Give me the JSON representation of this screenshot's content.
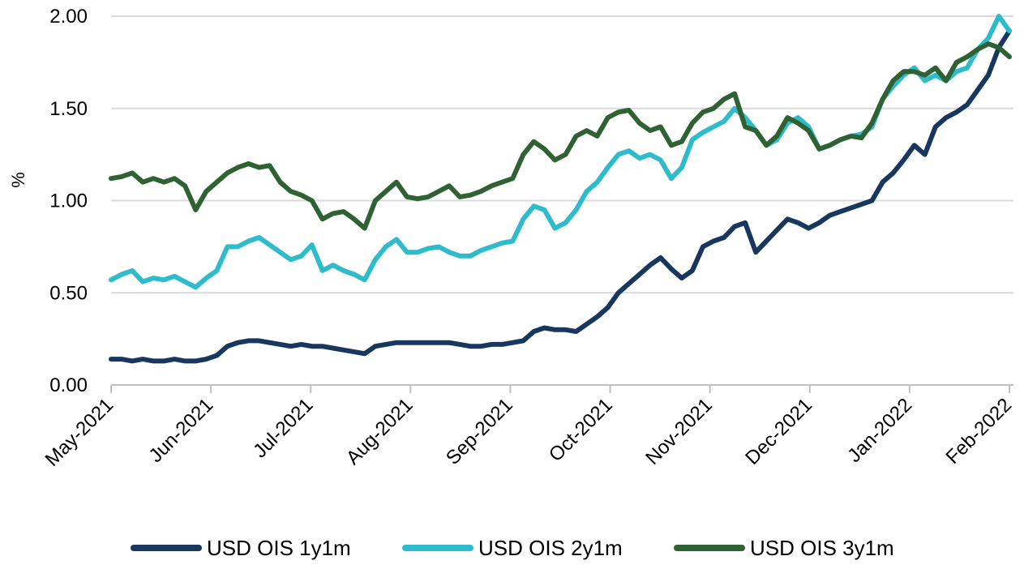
{
  "chart_data": {
    "type": "line",
    "title": "",
    "xlabel": "",
    "ylabel": "%",
    "ylim": [
      0,
      2
    ],
    "yticks": [
      "0.00",
      "0.50",
      "1.00",
      "1.50",
      "2.00"
    ],
    "ytick_values": [
      0,
      0.5,
      1,
      1.5,
      2
    ],
    "xticks": [
      "May-2021",
      "Jun-2021",
      "Jul-2021",
      "Aug-2021",
      "Sep-2021",
      "Oct-2021",
      "Nov-2021",
      "Dec-2021",
      "Jan-2022",
      "Feb-2022"
    ],
    "grid": true,
    "legend_position": "bottom",
    "series": [
      {
        "name": "USD OIS 1y1m",
        "color": "#17375e",
        "values": [
          0.14,
          0.14,
          0.13,
          0.14,
          0.13,
          0.13,
          0.14,
          0.13,
          0.13,
          0.14,
          0.16,
          0.21,
          0.23,
          0.24,
          0.24,
          0.23,
          0.22,
          0.21,
          0.22,
          0.21,
          0.21,
          0.2,
          0.19,
          0.18,
          0.17,
          0.21,
          0.22,
          0.23,
          0.23,
          0.23,
          0.23,
          0.23,
          0.23,
          0.22,
          0.21,
          0.21,
          0.22,
          0.22,
          0.23,
          0.24,
          0.29,
          0.31,
          0.3,
          0.3,
          0.29,
          0.33,
          0.37,
          0.42,
          0.5,
          0.55,
          0.6,
          0.65,
          0.69,
          0.63,
          0.58,
          0.62,
          0.75,
          0.78,
          0.8,
          0.86,
          0.88,
          0.72,
          0.78,
          0.84,
          0.9,
          0.88,
          0.85,
          0.88,
          0.92,
          0.94,
          0.96,
          0.98,
          1.0,
          1.1,
          1.15,
          1.22,
          1.3,
          1.25,
          1.4,
          1.45,
          1.48,
          1.52,
          1.6,
          1.68,
          1.83,
          1.92
        ]
      },
      {
        "name": "USD OIS 2y1m",
        "color": "#2ebccc",
        "values": [
          0.57,
          0.6,
          0.62,
          0.56,
          0.58,
          0.57,
          0.59,
          0.56,
          0.53,
          0.58,
          0.62,
          0.75,
          0.75,
          0.78,
          0.8,
          0.76,
          0.72,
          0.68,
          0.7,
          0.76,
          0.62,
          0.65,
          0.62,
          0.6,
          0.57,
          0.68,
          0.75,
          0.79,
          0.72,
          0.72,
          0.74,
          0.75,
          0.72,
          0.7,
          0.7,
          0.73,
          0.75,
          0.77,
          0.78,
          0.9,
          0.97,
          0.95,
          0.85,
          0.88,
          0.95,
          1.05,
          1.1,
          1.18,
          1.25,
          1.27,
          1.23,
          1.25,
          1.22,
          1.12,
          1.18,
          1.33,
          1.37,
          1.4,
          1.43,
          1.5,
          1.45,
          1.38,
          1.3,
          1.33,
          1.42,
          1.45,
          1.4,
          1.28,
          1.3,
          1.33,
          1.35,
          1.36,
          1.4,
          1.55,
          1.62,
          1.68,
          1.72,
          1.65,
          1.68,
          1.65,
          1.7,
          1.72,
          1.82,
          1.88,
          2.0,
          1.92
        ]
      },
      {
        "name": "USD OIS 3y1m",
        "color": "#2e6233",
        "values": [
          1.12,
          1.13,
          1.15,
          1.1,
          1.12,
          1.1,
          1.12,
          1.08,
          0.95,
          1.05,
          1.1,
          1.15,
          1.18,
          1.2,
          1.18,
          1.19,
          1.1,
          1.05,
          1.03,
          1.0,
          0.9,
          0.93,
          0.94,
          0.9,
          0.85,
          1.0,
          1.05,
          1.1,
          1.02,
          1.01,
          1.02,
          1.05,
          1.08,
          1.02,
          1.03,
          1.05,
          1.08,
          1.1,
          1.12,
          1.25,
          1.32,
          1.28,
          1.22,
          1.25,
          1.35,
          1.38,
          1.35,
          1.45,
          1.48,
          1.49,
          1.42,
          1.38,
          1.4,
          1.3,
          1.32,
          1.42,
          1.48,
          1.5,
          1.55,
          1.58,
          1.4,
          1.38,
          1.3,
          1.35,
          1.45,
          1.42,
          1.38,
          1.28,
          1.3,
          1.33,
          1.35,
          1.34,
          1.42,
          1.55,
          1.65,
          1.7,
          1.7,
          1.68,
          1.72,
          1.65,
          1.75,
          1.78,
          1.82,
          1.85,
          1.83,
          1.78
        ]
      }
    ]
  }
}
